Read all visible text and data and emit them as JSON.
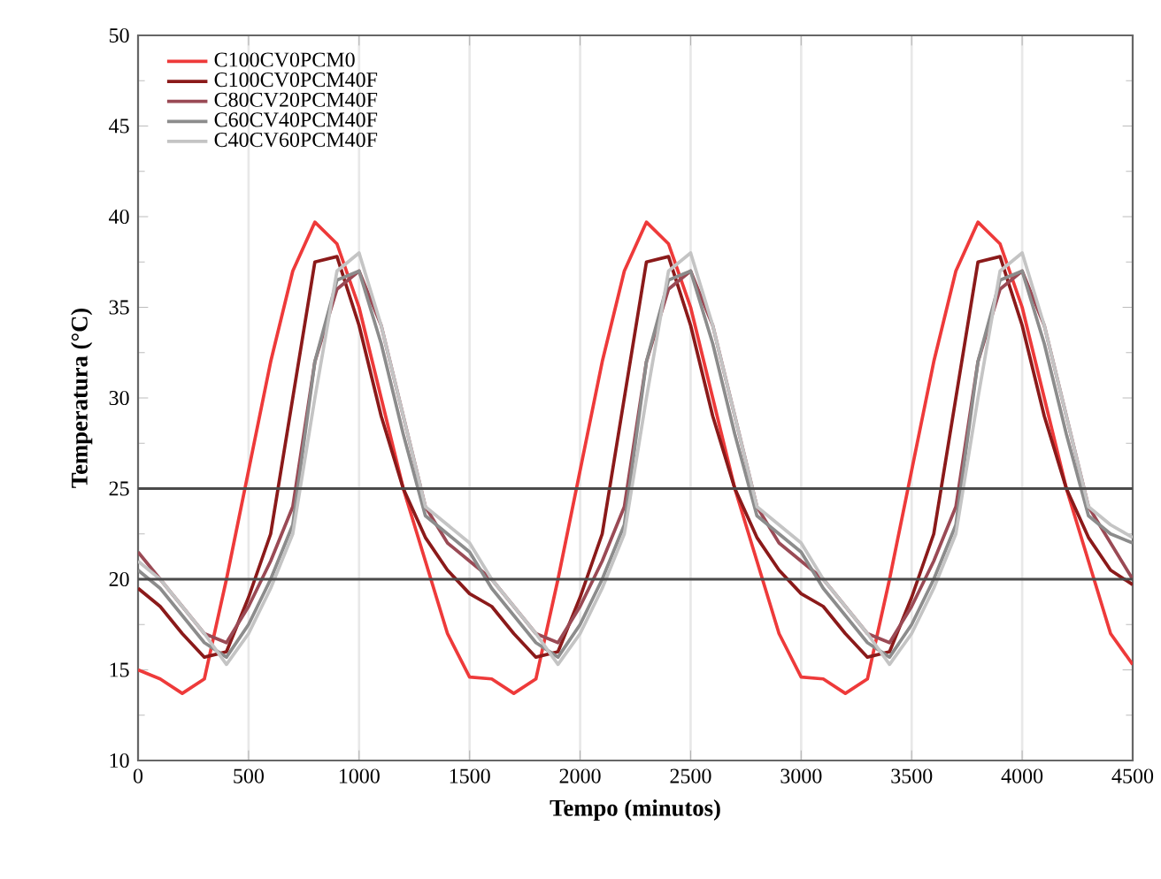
{
  "chart_data": {
    "type": "line",
    "xlabel": "Tempo (minutos)",
    "ylabel": "Temperatura (°C)",
    "x": [
      0,
      100,
      200,
      300,
      400,
      500,
      600,
      700,
      800,
      900,
      1000,
      1100,
      1200,
      1300,
      1400,
      1500,
      1600,
      1700,
      1800,
      1900,
      2000,
      2100,
      2200,
      2300,
      2400,
      2500,
      2600,
      2700,
      2800,
      2900,
      3000,
      3100,
      3200,
      3300,
      3400,
      3500,
      3600,
      3700,
      3800,
      3900,
      4000,
      4100,
      4200,
      4300,
      4400,
      4500
    ],
    "series": [
      {
        "name": "C100CV0PCM0",
        "color": "#ee3a3a",
        "values": [
          15,
          14.5,
          13.7,
          14.5,
          20,
          26,
          32,
          37,
          39.7,
          38.5,
          35,
          30,
          25,
          21,
          17,
          14.6,
          14.5,
          13.7,
          14.5,
          20,
          26,
          32,
          37,
          39.7,
          38.5,
          35,
          30,
          25,
          21,
          17,
          14.6,
          14.5,
          13.7,
          14.5,
          20,
          26,
          32,
          37,
          39.7,
          38.5,
          35,
          30,
          25,
          21,
          17,
          15.3
        ]
      },
      {
        "name": "C100CV0PCM40F",
        "color": "#8b1a1a",
        "values": [
          19.5,
          18.5,
          17,
          15.7,
          16,
          19,
          22.5,
          30,
          37.5,
          37.8,
          34,
          29,
          25,
          22.3,
          20.5,
          19.2,
          18.5,
          17,
          15.7,
          16,
          19,
          22.5,
          30,
          37.5,
          37.8,
          34,
          29,
          25,
          22.3,
          20.5,
          19.2,
          18.5,
          17,
          15.7,
          16,
          19,
          22.5,
          30,
          37.5,
          37.8,
          34,
          29,
          25,
          22.3,
          20.5,
          19.7
        ]
      },
      {
        "name": "C80CV20PCM40F",
        "color": "#9a4a55",
        "values": [
          21.5,
          20,
          18.5,
          17,
          16.5,
          18.5,
          21,
          24,
          32,
          36,
          37,
          34,
          29,
          24,
          22,
          21,
          20,
          18.5,
          17,
          16.5,
          18.5,
          21,
          24,
          32,
          36,
          37,
          34,
          29,
          24,
          22,
          21,
          20,
          18.5,
          17,
          16.5,
          18.5,
          21,
          24,
          32,
          36,
          37,
          34,
          29,
          24,
          22,
          20
        ]
      },
      {
        "name": "C60CV40PCM40F",
        "color": "#8c8c8c",
        "values": [
          20.5,
          19.5,
          18,
          16.5,
          15.7,
          17.5,
          20,
          23,
          32,
          36.5,
          37,
          33,
          28,
          23.5,
          22.5,
          21.5,
          19.5,
          18,
          16.5,
          15.7,
          17.5,
          20,
          23,
          32,
          36.5,
          37,
          33,
          28,
          23.5,
          22.5,
          21.5,
          19.5,
          18,
          16.5,
          15.7,
          17.5,
          20,
          23,
          32,
          36.5,
          37,
          33,
          28,
          23.5,
          22.5,
          22
        ]
      },
      {
        "name": "C40CV60PCM40F",
        "color": "#c4c4c4",
        "values": [
          21,
          20,
          18.5,
          17,
          15.3,
          17,
          19.5,
          22.5,
          30,
          37,
          38,
          34,
          29,
          24,
          23,
          22,
          20,
          18.5,
          17,
          15.3,
          17,
          19.5,
          22.5,
          30,
          37,
          38,
          34,
          29,
          24,
          23,
          22,
          20,
          18.5,
          17,
          15.3,
          17,
          19.5,
          22.5,
          30,
          37,
          38,
          34,
          29,
          24,
          23,
          22.3
        ]
      }
    ],
    "xlim": [
      0,
      4500
    ],
    "ylim": [
      10,
      50
    ],
    "xticks": [
      0,
      500,
      1000,
      1500,
      2000,
      2500,
      3000,
      3500,
      4000,
      4500
    ],
    "yticks": [
      10,
      15,
      20,
      25,
      30,
      35,
      40,
      45,
      50
    ],
    "ref_lines": [
      {
        "axis": "y",
        "value": 20,
        "color": "#4a4a4a"
      },
      {
        "axis": "y",
        "value": 25,
        "color": "#4a4a4a"
      }
    ],
    "grid": true,
    "legend": "top left"
  }
}
